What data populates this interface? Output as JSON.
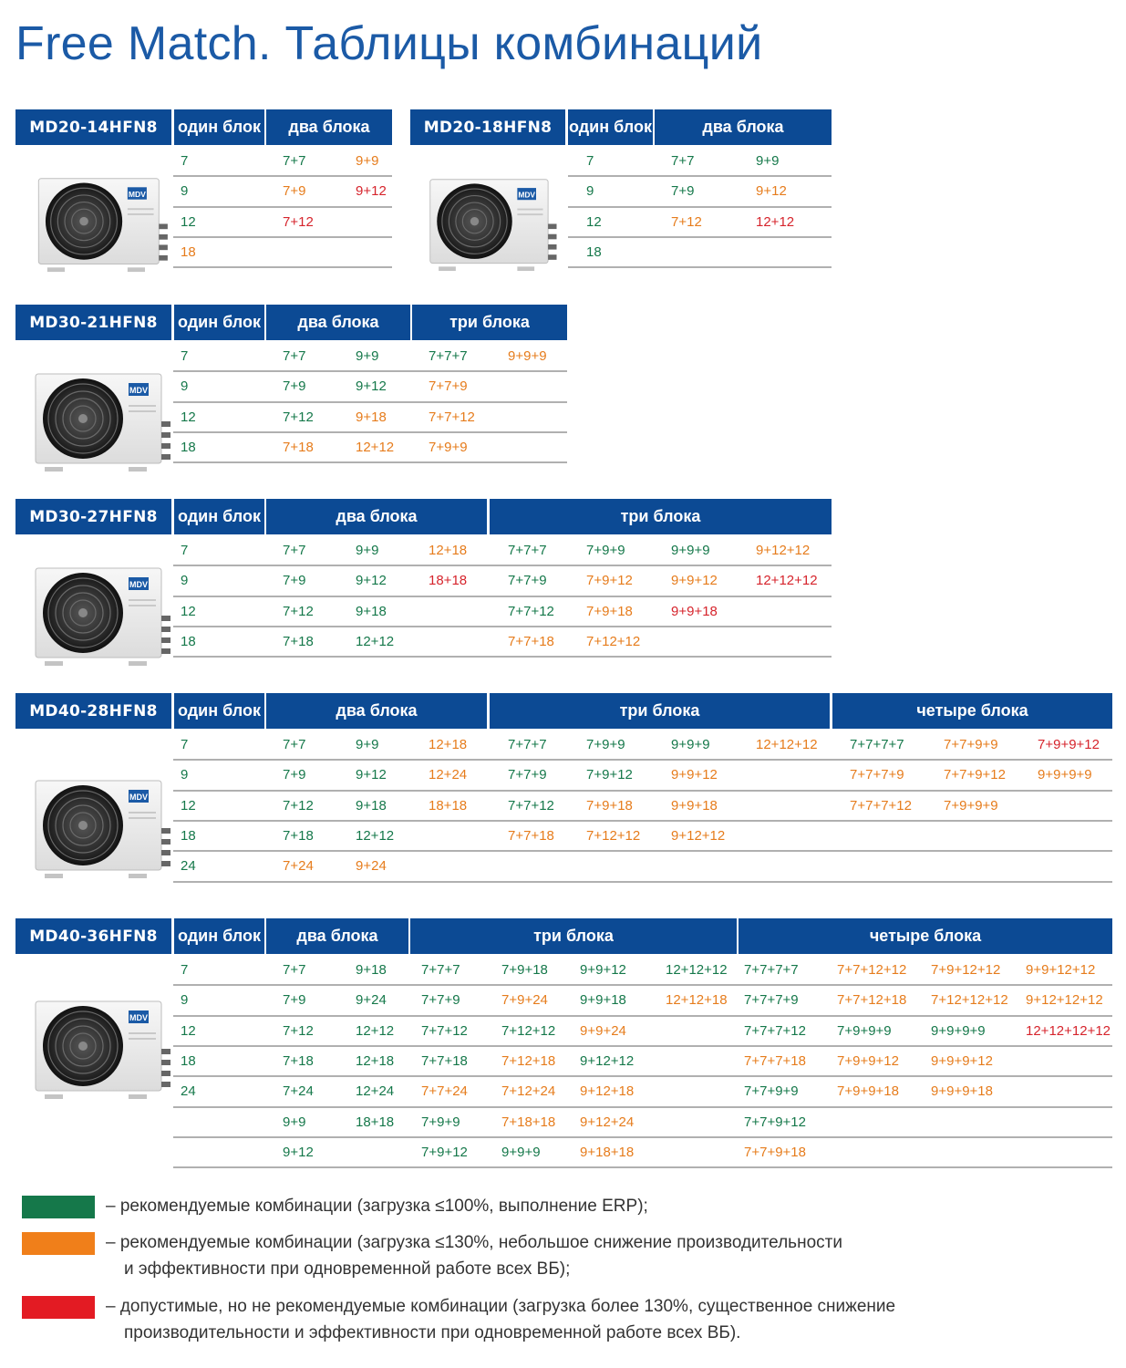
{
  "title": "Free Match. Таблицы комбинаций",
  "colors": {
    "header": "#0c4a94",
    "green": "#15784a",
    "orange": "#e67c1c",
    "red": "#d6242c"
  },
  "unit_logo": "MDV",
  "tables": [
    {
      "id": "t1",
      "model": "MD20-14HFN8",
      "headers": [
        "один блок",
        "два блока"
      ],
      "rows": [
        [
          [
            "7",
            "g"
          ],
          [
            "7+7",
            "g"
          ],
          [
            "9+9",
            "o"
          ]
        ],
        [
          [
            "9",
            "g"
          ],
          [
            "7+9",
            "o"
          ],
          [
            "9+12",
            "r"
          ]
        ],
        [
          [
            "12",
            "g"
          ],
          [
            "7+12",
            "r"
          ]
        ],
        [
          [
            "18",
            "o"
          ]
        ]
      ]
    },
    {
      "id": "t2",
      "model": "MD20-18HFN8",
      "headers": [
        "один блок",
        "два блока"
      ],
      "rows": [
        [
          [
            "7",
            "g"
          ],
          [
            "7+7",
            "g"
          ],
          [
            "9+9",
            "g"
          ]
        ],
        [
          [
            "9",
            "g"
          ],
          [
            "7+9",
            "g"
          ],
          [
            "9+12",
            "o"
          ]
        ],
        [
          [
            "12",
            "g"
          ],
          [
            "7+12",
            "o"
          ],
          [
            "12+12",
            "r"
          ]
        ],
        [
          [
            "18",
            "g"
          ]
        ]
      ]
    },
    {
      "id": "t3",
      "model": "MD30-21HFN8",
      "headers": [
        "один блок",
        "два блока",
        "три блока"
      ],
      "rows": [
        [
          [
            "7",
            "g"
          ],
          [
            "7+7",
            "g"
          ],
          [
            "9+9",
            "g"
          ],
          [
            "7+7+7",
            "g"
          ],
          [
            "9+9+9",
            "o"
          ]
        ],
        [
          [
            "9",
            "g"
          ],
          [
            "7+9",
            "g"
          ],
          [
            "9+12",
            "g"
          ],
          [
            "7+7+9",
            "o"
          ]
        ],
        [
          [
            "12",
            "g"
          ],
          [
            "7+12",
            "g"
          ],
          [
            "9+18",
            "o"
          ],
          [
            "7+7+12",
            "o"
          ]
        ],
        [
          [
            "18",
            "g"
          ],
          [
            "7+18",
            "o"
          ],
          [
            "12+12",
            "o"
          ],
          [
            "7+9+9",
            "o"
          ]
        ]
      ]
    },
    {
      "id": "t4",
      "model": "MD30-27HFN8",
      "headers": [
        "один блок",
        "два блока",
        "три блока"
      ],
      "rows": [
        [
          [
            "7",
            "g"
          ],
          [
            "7+7",
            "g"
          ],
          [
            "9+9",
            "g"
          ],
          [
            "12+18",
            "o"
          ],
          [
            "7+7+7",
            "g"
          ],
          [
            "7+9+9",
            "g"
          ],
          [
            "9+9+9",
            "g"
          ],
          [
            "9+12+12",
            "o"
          ]
        ],
        [
          [
            "9",
            "g"
          ],
          [
            "7+9",
            "g"
          ],
          [
            "9+12",
            "g"
          ],
          [
            "18+18",
            "r"
          ],
          [
            "7+7+9",
            "g"
          ],
          [
            "7+9+12",
            "o"
          ],
          [
            "9+9+12",
            "o"
          ],
          [
            "12+12+12",
            "r"
          ]
        ],
        [
          [
            "12",
            "g"
          ],
          [
            "7+12",
            "g"
          ],
          [
            "9+18",
            "g"
          ],
          [
            "",
            ""
          ],
          [
            "7+7+12",
            "g"
          ],
          [
            "7+9+18",
            "o"
          ],
          [
            "9+9+18",
            "r"
          ]
        ],
        [
          [
            "18",
            "g"
          ],
          [
            "7+18",
            "g"
          ],
          [
            "12+12",
            "g"
          ],
          [
            "",
            ""
          ],
          [
            "7+7+18",
            "o"
          ],
          [
            "7+12+12",
            "o"
          ]
        ]
      ]
    },
    {
      "id": "t5",
      "model": "MD40-28HFN8",
      "headers": [
        "один блок",
        "два блока",
        "три блока",
        "четыре блока"
      ],
      "rows": [
        [
          [
            "7",
            "g"
          ],
          [
            "7+7",
            "g"
          ],
          [
            "9+9",
            "g"
          ],
          [
            "12+18",
            "o"
          ],
          [
            "7+7+7",
            "g"
          ],
          [
            "7+9+9",
            "g"
          ],
          [
            "9+9+9",
            "g"
          ],
          [
            "12+12+12",
            "o"
          ],
          [
            "7+7+7+7",
            "g"
          ],
          [
            "7+7+9+9",
            "o"
          ],
          [
            "7+9+9+12",
            "r"
          ]
        ],
        [
          [
            "9",
            "g"
          ],
          [
            "7+9",
            "g"
          ],
          [
            "9+12",
            "g"
          ],
          [
            "12+24",
            "o"
          ],
          [
            "7+7+9",
            "g"
          ],
          [
            "7+9+12",
            "g"
          ],
          [
            "9+9+12",
            "o"
          ],
          [
            "",
            ""
          ],
          [
            "7+7+7+9",
            "o"
          ],
          [
            "7+7+9+12",
            "o"
          ],
          [
            "9+9+9+9",
            "o"
          ]
        ],
        [
          [
            "12",
            "g"
          ],
          [
            "7+12",
            "g"
          ],
          [
            "9+18",
            "g"
          ],
          [
            "18+18",
            "o"
          ],
          [
            "7+7+12",
            "g"
          ],
          [
            "7+9+18",
            "o"
          ],
          [
            "9+9+18",
            "o"
          ],
          [
            "",
            ""
          ],
          [
            "7+7+7+12",
            "o"
          ],
          [
            "7+9+9+9",
            "o"
          ]
        ],
        [
          [
            "18",
            "g"
          ],
          [
            "7+18",
            "g"
          ],
          [
            "12+12",
            "g"
          ],
          [
            "",
            ""
          ],
          [
            "7+7+18",
            "o"
          ],
          [
            "7+12+12",
            "o"
          ],
          [
            "9+12+12",
            "o"
          ]
        ],
        [
          [
            "24",
            "g"
          ],
          [
            "7+24",
            "o"
          ],
          [
            "9+24",
            "o"
          ]
        ]
      ]
    },
    {
      "id": "t6",
      "model": "MD40-36HFN8",
      "headers": [
        "один блок",
        "два блока",
        "три блока",
        "четыре блока"
      ],
      "rows": [
        [
          [
            "7",
            "g"
          ],
          [
            "7+7",
            "g"
          ],
          [
            "9+18",
            "g"
          ],
          [
            "7+7+7",
            "g"
          ],
          [
            "7+9+18",
            "g"
          ],
          [
            "9+9+12",
            "g"
          ],
          [
            "12+12+12",
            "g"
          ],
          [
            "7+7+7+7",
            "g"
          ],
          [
            "7+7+12+12",
            "o"
          ],
          [
            "7+9+12+12",
            "o"
          ],
          [
            "9+9+12+12",
            "o"
          ]
        ],
        [
          [
            "9",
            "g"
          ],
          [
            "7+9",
            "g"
          ],
          [
            "9+24",
            "g"
          ],
          [
            "7+7+9",
            "g"
          ],
          [
            "7+9+24",
            "o"
          ],
          [
            "9+9+18",
            "g"
          ],
          [
            "12+12+18",
            "o"
          ],
          [
            "7+7+7+9",
            "g"
          ],
          [
            "7+7+12+18",
            "o"
          ],
          [
            "7+12+12+12",
            "o"
          ],
          [
            "9+12+12+12",
            "o"
          ]
        ],
        [
          [
            "12",
            "g"
          ],
          [
            "7+12",
            "g"
          ],
          [
            "12+12",
            "g"
          ],
          [
            "7+7+12",
            "g"
          ],
          [
            "7+12+12",
            "g"
          ],
          [
            "9+9+24",
            "o"
          ],
          [
            "",
            ""
          ],
          [
            "7+7+7+12",
            "g"
          ],
          [
            "7+9+9+9",
            "g"
          ],
          [
            "9+9+9+9",
            "g"
          ],
          [
            "12+12+12+12",
            "r"
          ]
        ],
        [
          [
            "18",
            "g"
          ],
          [
            "7+18",
            "g"
          ],
          [
            "12+18",
            "g"
          ],
          [
            "7+7+18",
            "g"
          ],
          [
            "7+12+18",
            "o"
          ],
          [
            "9+12+12",
            "g"
          ],
          [
            "",
            ""
          ],
          [
            "7+7+7+18",
            "o"
          ],
          [
            "7+9+9+12",
            "o"
          ],
          [
            "9+9+9+12",
            "o"
          ]
        ],
        [
          [
            "24",
            "g"
          ],
          [
            "7+24",
            "g"
          ],
          [
            "12+24",
            "g"
          ],
          [
            "7+7+24",
            "o"
          ],
          [
            "7+12+24",
            "o"
          ],
          [
            "9+12+18",
            "o"
          ],
          [
            "",
            ""
          ],
          [
            "7+7+9+9",
            "g"
          ],
          [
            "7+9+9+18",
            "o"
          ],
          [
            "9+9+9+18",
            "o"
          ]
        ],
        [
          [
            "",
            ""
          ],
          [
            "9+9",
            "g"
          ],
          [
            "18+18",
            "g"
          ],
          [
            "7+9+9",
            "g"
          ],
          [
            "7+18+18",
            "o"
          ],
          [
            "9+12+24",
            "o"
          ],
          [
            "",
            ""
          ],
          [
            "7+7+9+12",
            "g"
          ]
        ],
        [
          [
            "",
            ""
          ],
          [
            "9+12",
            "g"
          ],
          [
            "",
            ""
          ],
          [
            "7+9+12",
            "g"
          ],
          [
            "9+9+9",
            "g"
          ],
          [
            "9+18+18",
            "o"
          ],
          [
            "",
            ""
          ],
          [
            "7+7+9+18",
            "o"
          ]
        ]
      ]
    }
  ],
  "legend": [
    {
      "color": "#15784a",
      "lines": [
        "– рекомендуемые комбинации (загрузка ≤100%, выполнение ERP);"
      ]
    },
    {
      "color": "#f07f1a",
      "lines": [
        "– рекомендуемые комбинации (загрузка ≤130%, небольшое снижение производительности",
        "и эффективности при одновременной работе всех ВБ);"
      ]
    },
    {
      "color": "#e31b23",
      "lines": [
        "– допустимые, но не рекомендуемые комбинации (загрузка более 130%, существенное снижение",
        "производительности и эффективности при одновременной работе всех ВБ)."
      ]
    }
  ]
}
